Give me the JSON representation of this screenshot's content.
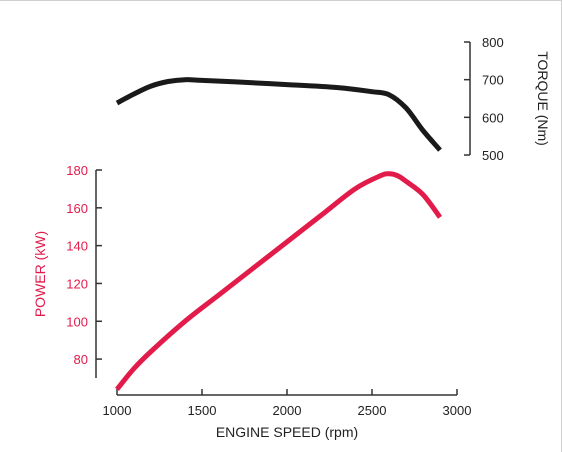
{
  "colors": {
    "torque": "#1a1a1a",
    "power": "#e31b4b",
    "axis": "#333333",
    "text": "#222222"
  },
  "chart_data": {
    "type": "line",
    "xlabel": "ENGINE SPEED (rpm)",
    "xlim": [
      1000,
      3000
    ],
    "x_ticks": [
      "1000",
      "1500",
      "2000",
      "2500",
      "3000"
    ],
    "series": [
      {
        "name": "TORQUE (Nm)",
        "axis": "right",
        "ylabel": "TORQUE (Nm)",
        "ylim": [
          500,
          800
        ],
        "y_ticks": [
          "500",
          "600",
          "700",
          "800"
        ],
        "x": [
          1000,
          1100,
          1200,
          1300,
          1400,
          1500,
          1700,
          2000,
          2300,
          2500,
          2600,
          2700,
          2800,
          2900
        ],
        "y": [
          638,
          662,
          683,
          695,
          700,
          698,
          694,
          687,
          679,
          668,
          660,
          625,
          565,
          513
        ]
      },
      {
        "name": "POWER (kW)",
        "axis": "left",
        "ylabel": "POWER (kW)",
        "ylim": [
          70,
          180
        ],
        "y_ticks": [
          "80",
          "100",
          "120",
          "140",
          "160",
          "180"
        ],
        "x": [
          1000,
          1100,
          1200,
          1400,
          1600,
          1800,
          2000,
          2200,
          2400,
          2550,
          2600,
          2650,
          2700,
          2800,
          2900
        ],
        "y": [
          64,
          75,
          84,
          100,
          114,
          128,
          142,
          156,
          170,
          177,
          178,
          177,
          174,
          167,
          155
        ]
      }
    ]
  }
}
